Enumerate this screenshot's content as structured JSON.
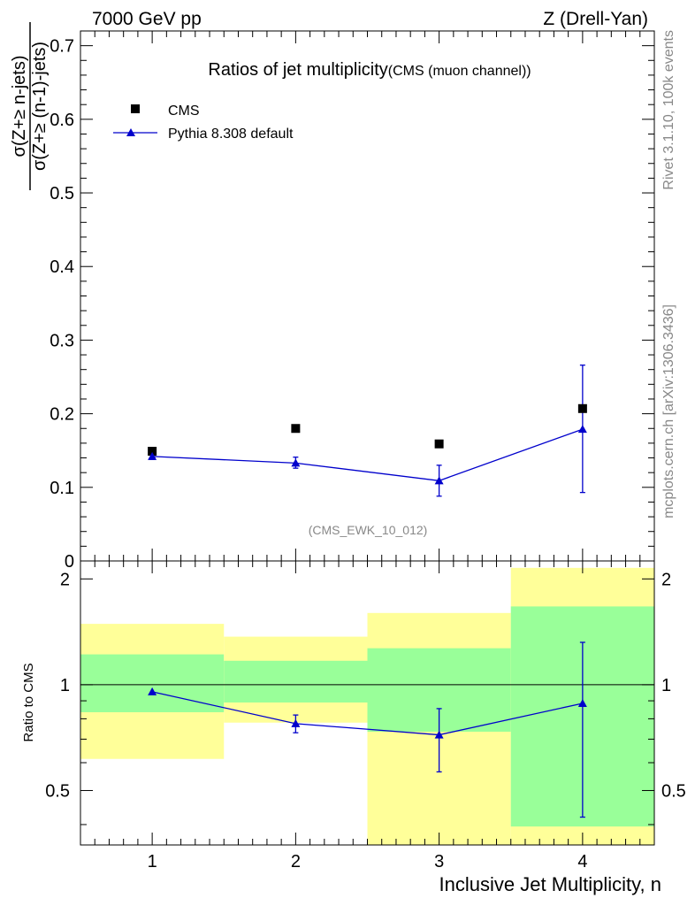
{
  "header": {
    "left": "7000 GeV pp",
    "right": "Z (Drell-Yan)"
  },
  "side_labels": {
    "rivet": "Rivet 3.1.10,  100k events",
    "mcplots": "mcplots.cern.ch [arXiv:1306.3436]"
  },
  "chart_data": [
    {
      "type": "scatter",
      "title": "Ratios of jet multiplicity",
      "subtitle": "(CMS (muon channel))",
      "analysis_tag": "(CMS_EWK_10_012)",
      "ylabel_numerator": "σ(Z+≥ n-jets)",
      "ylabel_denominator": "σ(Z+≥ (n-1)-jets)",
      "xlim": [
        0.5,
        4.5
      ],
      "ylim": [
        0,
        0.72
      ],
      "xticks": [
        1,
        2,
        3,
        4
      ],
      "yticks": [
        0,
        0.1,
        0.2,
        0.3,
        0.4,
        0.5,
        0.6,
        0.7
      ],
      "ytick_labels": [
        "0",
        "0.1",
        "0.2",
        "0.3",
        "0.4",
        "0.5",
        "0.6",
        "0.7"
      ],
      "legend_position": "top-left",
      "grid": false,
      "x": [
        1,
        2,
        3,
        4
      ],
      "series": [
        {
          "name": "CMS",
          "marker": "square",
          "color": "#000000",
          "values": [
            0.149,
            0.18,
            0.159,
            0.207
          ]
        },
        {
          "name": "Pythia 8.308 default",
          "marker": "triangle",
          "color": "#0000cc",
          "values": [
            0.142,
            0.133,
            0.109,
            0.179
          ],
          "err_low": [
            0.004,
            0.007,
            0.021,
            0.086
          ],
          "err_high": [
            0.004,
            0.008,
            0.021,
            0.087
          ]
        }
      ]
    },
    {
      "type": "scatter",
      "title": "",
      "ylabel": "Ratio to CMS",
      "xlabel": "Inclusive Jet Multiplicity, n",
      "xlim": [
        0.5,
        4.5
      ],
      "ylim": [
        0.35,
        2.25
      ],
      "ylog": true,
      "xticks": [
        1,
        2,
        3,
        4
      ],
      "yticks": [
        0.5,
        1,
        2
      ],
      "ytick_labels": [
        "0.5",
        "1",
        "2"
      ],
      "reference_line": 1,
      "grid": false,
      "bands": {
        "bins": [
          [
            0.5,
            1.5
          ],
          [
            1.5,
            2.5
          ],
          [
            2.5,
            3.5
          ],
          [
            3.5,
            4.5
          ]
        ],
        "stat_low": [
          0.835,
          0.89,
          0.735,
          0.395
        ],
        "stat_high": [
          1.22,
          1.17,
          1.27,
          1.67
        ],
        "total_low": [
          0.615,
          0.78,
          0.35,
          0.35
        ],
        "total_high": [
          1.49,
          1.37,
          1.6,
          2.15
        ],
        "stat_color": "#99ff99",
        "total_color": "#ffff99"
      },
      "x": [
        1,
        2,
        3,
        4
      ],
      "series": [
        {
          "name": "Pythia 8.308 default",
          "color": "#0000cc",
          "values": [
            0.955,
            0.775,
            0.72,
            0.885
          ],
          "err_low": [
            0.0,
            0.045,
            0.155,
            0.465
          ],
          "err_high": [
            0.0,
            0.045,
            0.135,
            0.435
          ]
        }
      ]
    }
  ]
}
